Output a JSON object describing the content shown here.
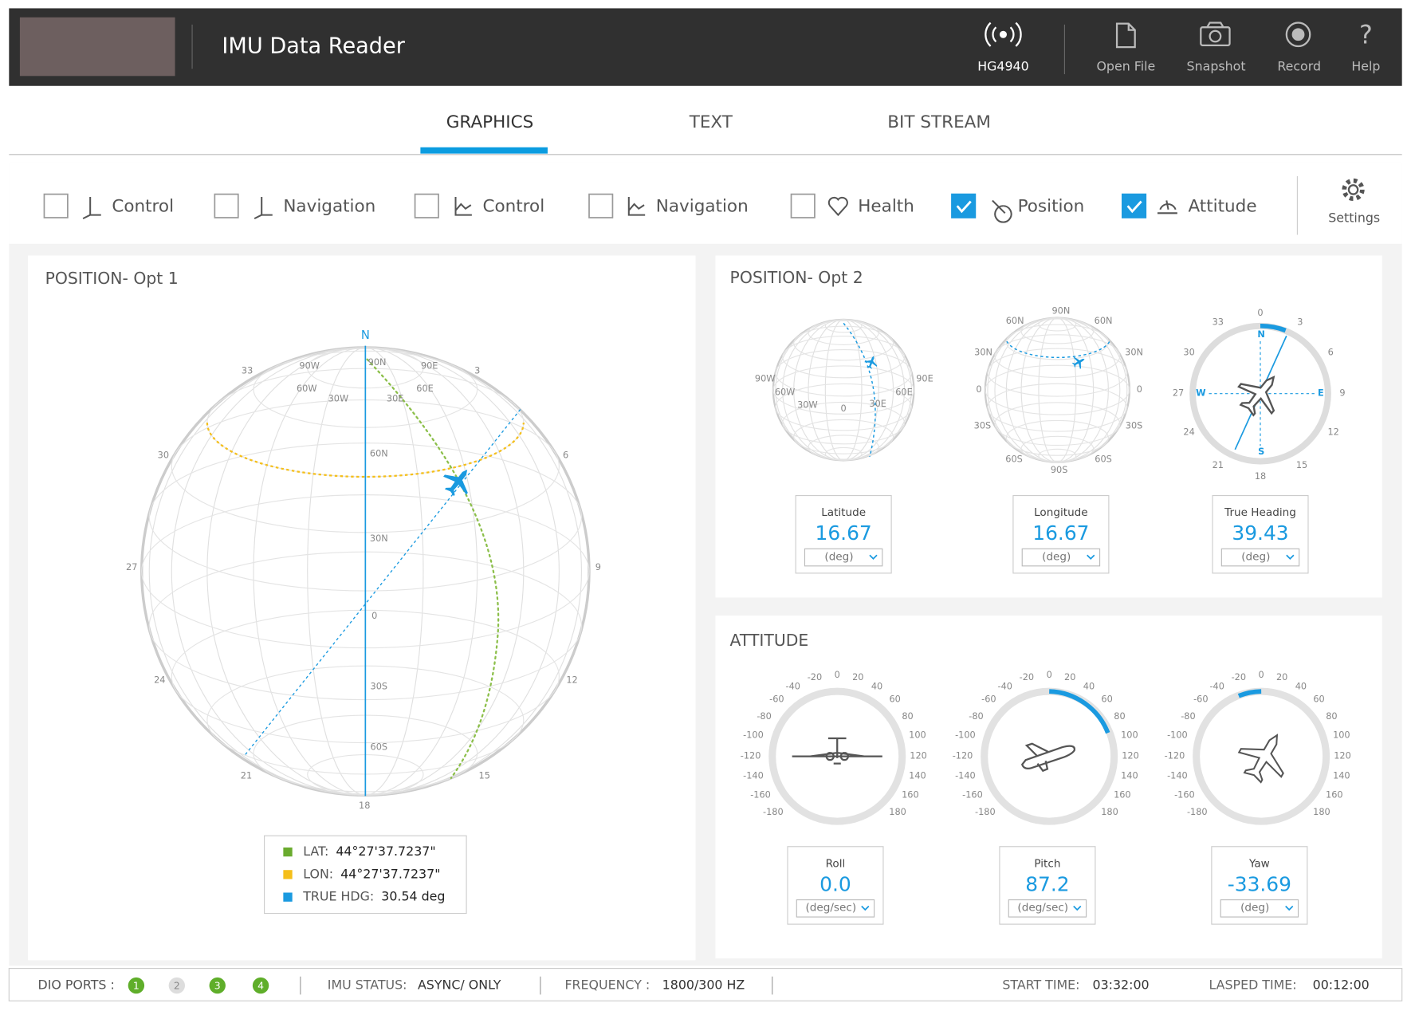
{
  "header": {
    "title": "IMU Data Reader",
    "device": "HG4940",
    "actions": [
      "Open File",
      "Snapshot",
      "Record",
      "Help"
    ]
  },
  "tabs": [
    "GRAPHICS",
    "TEXT",
    "BIT STREAM"
  ],
  "filters": [
    {
      "label": "Control",
      "checked": false
    },
    {
      "label": "Navigation",
      "checked": false
    },
    {
      "label": "Control",
      "checked": false
    },
    {
      "label": "Navigation",
      "checked": false
    },
    {
      "label": "Health",
      "checked": false
    },
    {
      "label": "Position",
      "checked": true
    },
    {
      "label": "Attitude",
      "checked": true
    }
  ],
  "settings": "Settings",
  "position_opt1": {
    "title": "POSITION- Opt 1",
    "north": "N",
    "globe_labels": [
      "90W",
      "90N",
      "90E",
      "60W",
      "60E",
      "30W",
      "30E",
      "60N",
      "30N",
      "0",
      "30S",
      "60S"
    ],
    "compass_labels": [
      "33",
      "3",
      "30",
      "6",
      "27",
      "9",
      "24",
      "12",
      "21",
      "15",
      "18"
    ],
    "legend": [
      {
        "label": "LAT:",
        "value": "44°27'37.7237\"",
        "color": "#6aab2e"
      },
      {
        "label": "LON:",
        "value": "44°27'37.7237\"",
        "color": "#f5bf1a"
      },
      {
        "label": "TRUE HDG:",
        "value": "30.54 deg",
        "color": "#1a9ae0"
      }
    ]
  },
  "position_opt2": {
    "title": "POSITION- Opt 2",
    "globe1_labels": [
      "90W",
      "60W",
      "30W",
      "0",
      "30E",
      "60E",
      "90E"
    ],
    "globe2_labels": [
      "90N",
      "60N",
      "60N",
      "30N",
      "30N",
      "0",
      "0",
      "30S",
      "30S",
      "60S",
      "60S",
      "90S"
    ],
    "compass_labels": [
      "0",
      "3",
      "33",
      "30",
      "6",
      "27",
      "9",
      "24",
      "12",
      "21",
      "15",
      "18"
    ],
    "cardinals": [
      "N",
      "E",
      "S",
      "W"
    ],
    "readouts": [
      {
        "label": "Latitude",
        "value": "16.67",
        "unit": "(deg)"
      },
      {
        "label": "Longitude",
        "value": "16.67",
        "unit": "(deg)"
      },
      {
        "label": "True Heading",
        "value": "39.43",
        "unit": "(deg)"
      }
    ]
  },
  "attitude": {
    "title": "ATTITUDE",
    "scale_labels": [
      "-180",
      "-160",
      "-140",
      "-120",
      "-100",
      "-80",
      "-60",
      "-40",
      "-20",
      "0",
      "20",
      "40",
      "60",
      "80",
      "100",
      "120",
      "140",
      "160",
      "180"
    ],
    "readouts": [
      {
        "label": "Roll",
        "value": "0.0",
        "unit": "(deg/sec)"
      },
      {
        "label": "Pitch",
        "value": "87.2",
        "unit": "(deg/sec)"
      },
      {
        "label": "Yaw",
        "value": "-33.69",
        "unit": "(deg)"
      }
    ]
  },
  "status": {
    "dio_label": "DIO PORTS :",
    "dio_ports": [
      {
        "label": "1",
        "active": true
      },
      {
        "label": "2",
        "active": false
      },
      {
        "label": "3",
        "active": true
      },
      {
        "label": "4",
        "active": true
      }
    ],
    "imu_label": "IMU STATUS:",
    "imu_value": "ASYNC/ ONLY",
    "freq_label": "FREQUENCY :",
    "freq_value": "1800/300 HZ",
    "start_label": "START TIME:",
    "start_value": "03:32:00",
    "elapsed_label": "LASPED TIME:",
    "elapsed_value": "00:12:00"
  }
}
